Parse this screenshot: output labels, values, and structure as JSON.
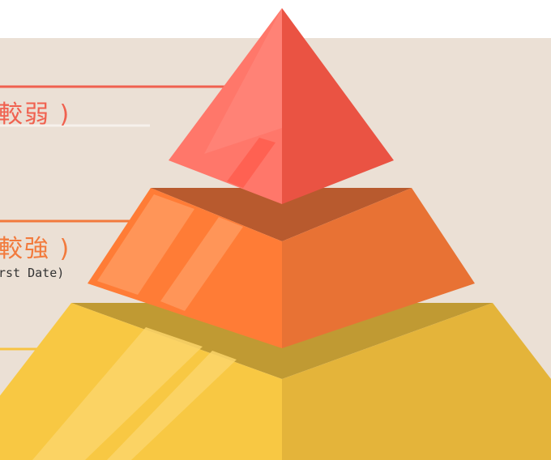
{
  "diagram": {
    "type": "pyramid",
    "levels": [
      {
        "tier": "top",
        "label": "較弱 )",
        "sublabel": ""
      },
      {
        "tier": "middle",
        "label": "較強 )",
        "sublabel": "rst Date)"
      },
      {
        "tier": "bottom",
        "label": "",
        "sublabel": ""
      }
    ]
  },
  "colors": {
    "background": "#ebe0d5",
    "top": "#f0614f",
    "middle": "#f27a3c",
    "bottom": "#f7c342"
  }
}
